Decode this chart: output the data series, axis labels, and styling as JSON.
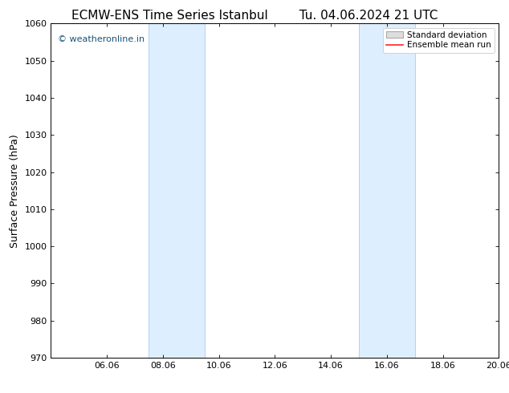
{
  "title_left": "ECMW-ENS Time Series Istanbul",
  "title_right": "Tu. 04.06.2024 21 UTC",
  "ylabel": "Surface Pressure (hPa)",
  "ylim": [
    970,
    1060
  ],
  "yticks": [
    970,
    980,
    990,
    1000,
    1010,
    1020,
    1030,
    1040,
    1050,
    1060
  ],
  "xlim": [
    0,
    16
  ],
  "xtick_labels": [
    "06.06",
    "08.06",
    "10.06",
    "12.06",
    "14.06",
    "16.06",
    "18.06",
    "20.06"
  ],
  "xtick_positions": [
    2,
    4,
    6,
    8,
    10,
    12,
    14,
    16
  ],
  "shaded_regions": [
    {
      "start": 3.5,
      "end": 5.5
    },
    {
      "start": 11.0,
      "end": 13.0
    }
  ],
  "shaded_color": "#ddeeff",
  "shaded_edge_color": "#aaccee",
  "background_color": "#ffffff",
  "watermark_text": "© weatheronline.in",
  "watermark_color": "#1a5276",
  "legend_std_label": "Standard deviation",
  "legend_mean_label": "Ensemble mean run",
  "legend_std_facecolor": "#dddddd",
  "legend_std_edgecolor": "#aaaaaa",
  "legend_mean_color": "#ff2222",
  "title_fontsize": 11,
  "ylabel_fontsize": 9,
  "tick_fontsize": 8,
  "watermark_fontsize": 8,
  "legend_fontsize": 7.5
}
